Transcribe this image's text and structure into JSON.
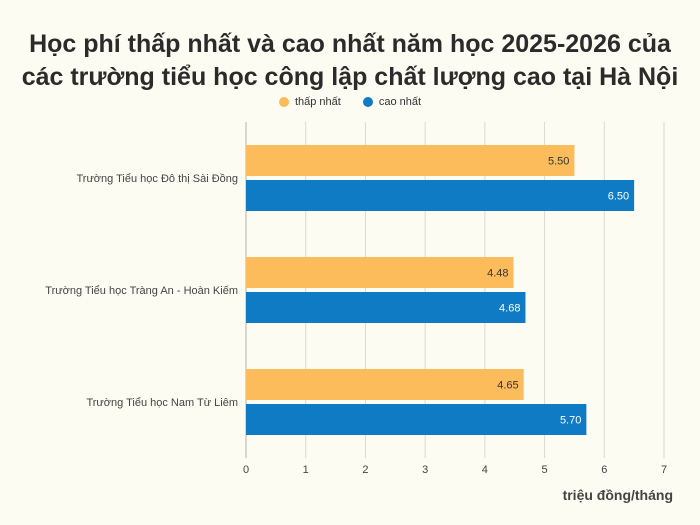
{
  "chart_data": {
    "type": "bar",
    "orientation": "horizontal",
    "title": [
      "Học phí thấp nhất và cao nhất năm học 2025-2026 của",
      "các trường tiểu học công lập chất lượng cao tại Hà Nội"
    ],
    "categories": [
      "Trường Tiểu học Đô thị Sài Đồng",
      "Trường Tiểu học Tràng An - Hoàn Kiếm",
      "Trường Tiểu học Nam Từ Liêm"
    ],
    "series": [
      {
        "name": "thấp nhất",
        "color": "#fdbc5b",
        "values": [
          5.5,
          4.48,
          4.65
        ],
        "labels": [
          "5.50",
          "4.48",
          "4.65"
        ]
      },
      {
        "name": "cao nhất",
        "color": "#0f7bc4",
        "values": [
          6.5,
          4.68,
          5.7
        ],
        "labels": [
          "6.50",
          "4.68",
          "5.70"
        ]
      }
    ],
    "xlabel": "triệu đồng/tháng",
    "xlim": [
      0,
      7
    ],
    "xticks": [
      "0",
      "1",
      "2",
      "3",
      "4",
      "5",
      "6",
      "7"
    ],
    "grid": true,
    "legend_position": "top-center"
  }
}
